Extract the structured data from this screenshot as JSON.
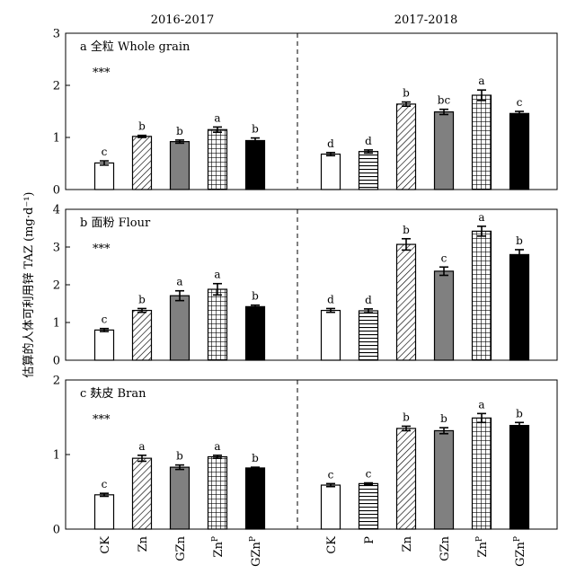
{
  "figure": {
    "y_axis_label": "估算的人体可利用锌 TAZ (mg·d⁻¹)",
    "period_left": "2016-2017",
    "period_right": "2017-2018",
    "x_tick_labels_left": [
      "CK",
      "Zn",
      "GZn",
      "ZnP",
      "GZnP"
    ],
    "x_tick_labels_right": [
      "CK",
      "P",
      "Zn",
      "GZn",
      "ZnP",
      "GZnP"
    ]
  },
  "chart_data": [
    {
      "type": "bar",
      "panel_label": "a 全粒 Whole grain",
      "significance": "***",
      "ylim": [
        0,
        3
      ],
      "yticks": [
        "0",
        "1",
        "2",
        "3"
      ],
      "groups": [
        {
          "period": "2016-2017",
          "categories": [
            "CK",
            "Zn",
            "GZn",
            "ZnP",
            "GZnP"
          ],
          "values": [
            0.51,
            1.02,
            0.92,
            1.15,
            0.94
          ],
          "errors": [
            0.04,
            0.02,
            0.03,
            0.05,
            0.05
          ],
          "letters": [
            "c",
            "b",
            "b",
            "a",
            "b"
          ]
        },
        {
          "period": "2017-2018",
          "categories": [
            "CK",
            "P",
            "Zn",
            "GZn",
            "ZnP",
            "GZnP"
          ],
          "values": [
            0.68,
            0.73,
            1.64,
            1.49,
            1.81,
            1.46
          ],
          "errors": [
            0.03,
            0.03,
            0.04,
            0.05,
            0.1,
            0.04
          ],
          "letters": [
            "d",
            "d",
            "b",
            "bc",
            "a",
            "c"
          ]
        }
      ]
    },
    {
      "type": "bar",
      "panel_label": "b 面粉 Flour",
      "significance": "***",
      "ylim": [
        0,
        4
      ],
      "yticks": [
        "0",
        "1",
        "2",
        "3",
        "4"
      ],
      "groups": [
        {
          "period": "2016-2017",
          "categories": [
            "CK",
            "Zn",
            "GZn",
            "ZnP",
            "GZnP"
          ],
          "values": [
            0.8,
            1.32,
            1.71,
            1.88,
            1.42
          ],
          "errors": [
            0.04,
            0.05,
            0.13,
            0.15,
            0.04
          ],
          "letters": [
            "c",
            "b",
            "a",
            "a",
            "b"
          ]
        },
        {
          "period": "2017-2018",
          "categories": [
            "CK",
            "P",
            "Zn",
            "GZn",
            "ZnP",
            "GZnP"
          ],
          "values": [
            1.32,
            1.31,
            3.07,
            2.36,
            3.42,
            2.8
          ],
          "errors": [
            0.05,
            0.05,
            0.15,
            0.11,
            0.13,
            0.13
          ],
          "letters": [
            "d",
            "d",
            "b",
            "c",
            "a",
            "b"
          ]
        }
      ]
    },
    {
      "type": "bar",
      "panel_label": "c 麸皮 Bran",
      "significance": "***",
      "ylim": [
        0,
        2
      ],
      "yticks": [
        "0",
        "1",
        "2"
      ],
      "groups": [
        {
          "period": "2016-2017",
          "categories": [
            "CK",
            "Zn",
            "GZn",
            "ZnP",
            "GZnP"
          ],
          "values": [
            0.46,
            0.95,
            0.83,
            0.97,
            0.82
          ],
          "errors": [
            0.02,
            0.04,
            0.03,
            0.02,
            0.01
          ],
          "letters": [
            "c",
            "a",
            "b",
            "a",
            "b"
          ]
        },
        {
          "period": "2017-2018",
          "categories": [
            "CK",
            "P",
            "Zn",
            "GZn",
            "ZnP",
            "GZnP"
          ],
          "values": [
            0.59,
            0.61,
            1.35,
            1.32,
            1.49,
            1.39
          ],
          "errors": [
            0.02,
            0.01,
            0.03,
            0.04,
            0.06,
            0.04
          ],
          "letters": [
            "c",
            "c",
            "b",
            "b",
            "a",
            "b"
          ]
        }
      ]
    }
  ]
}
